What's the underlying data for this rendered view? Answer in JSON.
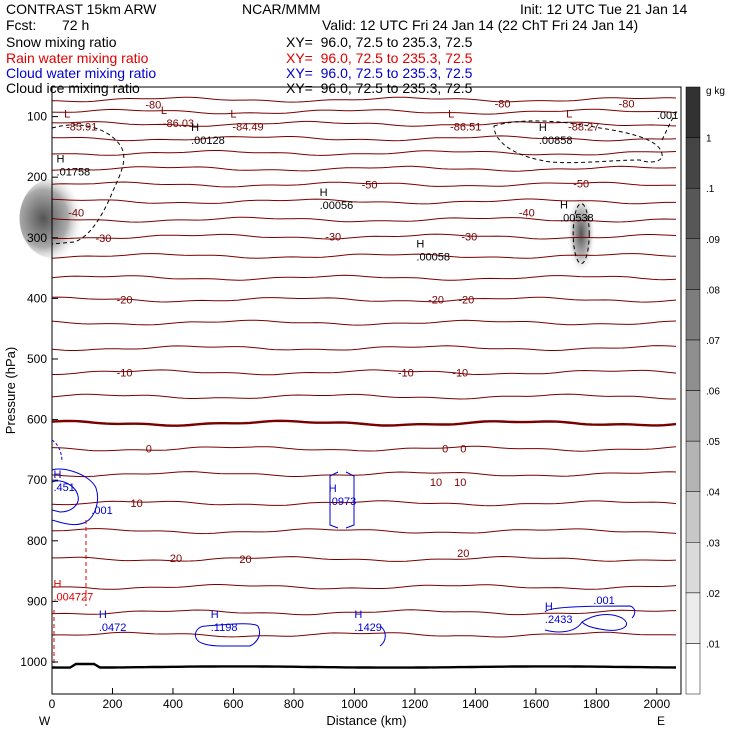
{
  "header": {
    "title": "CONTRAST 15km ARW",
    "center": "NCAR/MMM",
    "init": "Init: 12 UTC Tue 21 Jan 14",
    "fcst_label": "Fcst:",
    "fcst_value": "72 h",
    "valid": "Valid: 12 UTC Fri 24 Jan 14 (22 ChT Fri 24 Jan 14)"
  },
  "fields": [
    {
      "name": "Snow mixing ratio",
      "xy": "XY=  96.0, 72.5 to 235.3, 72.5",
      "color": "#000000"
    },
    {
      "name": "Rain water mixing ratio",
      "xy": "XY=  96.0, 72.5 to 235.3, 72.5",
      "color": "#e00000"
    },
    {
      "name": "Cloud water mixing ratio",
      "xy": "XY=  96.0, 72.5 to 235.3, 72.5",
      "color": "#0000d0"
    },
    {
      "name": "Cloud ice mixing ratio",
      "xy": "XY=  96.0, 72.5 to 235.3, 72.5",
      "color": "#000000"
    }
  ],
  "chart_data": {
    "type": "cross-section contour",
    "xlabel": "Distance (km)",
    "ylabel": "Pressure (hPa)",
    "xlim": [
      0,
      2080
    ],
    "ylim": [
      1050,
      60
    ],
    "xticks": [
      0,
      200,
      400,
      600,
      800,
      1000,
      1200,
      1400,
      1600,
      1800,
      2000
    ],
    "yticks": [
      100,
      200,
      300,
      400,
      500,
      600,
      700,
      800,
      900,
      1000
    ],
    "endpoint_labels": [
      "W",
      "E"
    ],
    "colorbar": {
      "unit_label": "g kg",
      "unit_exp": "-1",
      "ticks": [
        ".01",
        ".02",
        ".03",
        ".04",
        ".05",
        ".06",
        ".07",
        ".08",
        ".09",
        ".1",
        "1"
      ]
    },
    "temperature_labels": [
      {
        "x": 335,
        "p": 80,
        "text": "-80"
      },
      {
        "x": 1490,
        "p": 78,
        "text": "-80"
      },
      {
        "x": 1900,
        "p": 78,
        "text": "-80"
      },
      {
        "x": 1050,
        "p": 212,
        "text": "-50"
      },
      {
        "x": 1750,
        "p": 210,
        "text": "-50"
      },
      {
        "x": 80,
        "p": 258,
        "text": "-40"
      },
      {
        "x": 1570,
        "p": 258,
        "text": "-40"
      },
      {
        "x": 170,
        "p": 300,
        "text": "-30"
      },
      {
        "x": 930,
        "p": 298,
        "text": "-30"
      },
      {
        "x": 1380,
        "p": 298,
        "text": "-30"
      },
      {
        "x": 240,
        "p": 402,
        "text": "-20"
      },
      {
        "x": 1270,
        "p": 402,
        "text": "-20"
      },
      {
        "x": 1370,
        "p": 402,
        "text": "-20"
      },
      {
        "x": 240,
        "p": 522,
        "text": "-10"
      },
      {
        "x": 1170,
        "p": 522,
        "text": "-10"
      },
      {
        "x": 1350,
        "p": 522,
        "text": "-10"
      },
      {
        "x": 320,
        "p": 648,
        "text": "0"
      },
      {
        "x": 1300,
        "p": 648,
        "text": "0"
      },
      {
        "x": 1360,
        "p": 648,
        "text": "0"
      },
      {
        "x": 280,
        "p": 738,
        "text": "10"
      },
      {
        "x": 1270,
        "p": 703,
        "text": "10"
      },
      {
        "x": 1350,
        "p": 703,
        "text": "10"
      },
      {
        "x": 410,
        "p": 828,
        "text": "20"
      },
      {
        "x": 640,
        "p": 830,
        "text": "20"
      },
      {
        "x": 1360,
        "p": 820,
        "text": "20"
      }
    ],
    "low_markers": [
      {
        "x": 40,
        "p": 108,
        "letter": "L",
        "value": "-85.91"
      },
      {
        "x": 360,
        "p": 102,
        "letter": "L",
        "value": "-86.03"
      },
      {
        "x": 590,
        "p": 108,
        "letter": "L",
        "value": "-84.49"
      },
      {
        "x": 1310,
        "p": 108,
        "letter": "L",
        "value": "-86.51"
      },
      {
        "x": 1700,
        "p": 108,
        "letter": "L",
        "value": "-88.27"
      }
    ],
    "high_markers": [
      {
        "x": 460,
        "p": 130,
        "letter": "H",
        "value": ".00128",
        "color": "#000000"
      },
      {
        "x": 1610,
        "p": 130,
        "letter": "H",
        "value": ".00858",
        "color": "#000000"
      },
      {
        "x": 15,
        "p": 182,
        "letter": "H",
        "value": ".01758",
        "color": "#000000"
      },
      {
        "x": 885,
        "p": 238,
        "letter": "H",
        "value": ".00056",
        "color": "#000000"
      },
      {
        "x": 1680,
        "p": 258,
        "letter": "H",
        "value": ".00538",
        "color": "#000000"
      },
      {
        "x": 1205,
        "p": 323,
        "letter": "H",
        "value": ".00058",
        "color": "#000000"
      },
      {
        "x": 5,
        "p": 703,
        "letter": "H",
        "value": ".451",
        "color": "#0000d0"
      },
      {
        "x": 915,
        "p": 726,
        "letter": "H",
        "value": ".0973",
        "color": "#0000d0"
      },
      {
        "x": 5,
        "p": 884,
        "letter": "H",
        "value": ".004727",
        "color": "#e00000"
      },
      {
        "x": 155,
        "p": 934,
        "letter": "H",
        "value": ".0472",
        "color": "#0000d0"
      },
      {
        "x": 525,
        "p": 934,
        "letter": "H",
        "value": ".1198",
        "color": "#0000d0"
      },
      {
        "x": 1000,
        "p": 934,
        "letter": "H",
        "value": ".1429",
        "color": "#0000d0"
      },
      {
        "x": 1630,
        "p": 921,
        "letter": "H",
        "value": ".2433",
        "color": "#0000d0"
      }
    ],
    "contour_values_misc": [
      {
        "x": 2000,
        "p": 104,
        "text": ".001",
        "color": "#000000"
      },
      {
        "x": 130,
        "p": 756,
        "text": ".001",
        "color": "#0000d0"
      },
      {
        "x": 1790,
        "p": 904,
        "text": ".001",
        "color": "#0000d0"
      }
    ],
    "isotherm_levels_hPa": [
      72,
      92,
      112,
      136,
      160,
      186,
      212,
      240,
      270,
      298,
      330,
      366,
      402,
      440,
      482,
      522,
      562,
      606,
      648,
      690,
      738,
      784,
      830,
      876,
      918,
      955
    ]
  }
}
